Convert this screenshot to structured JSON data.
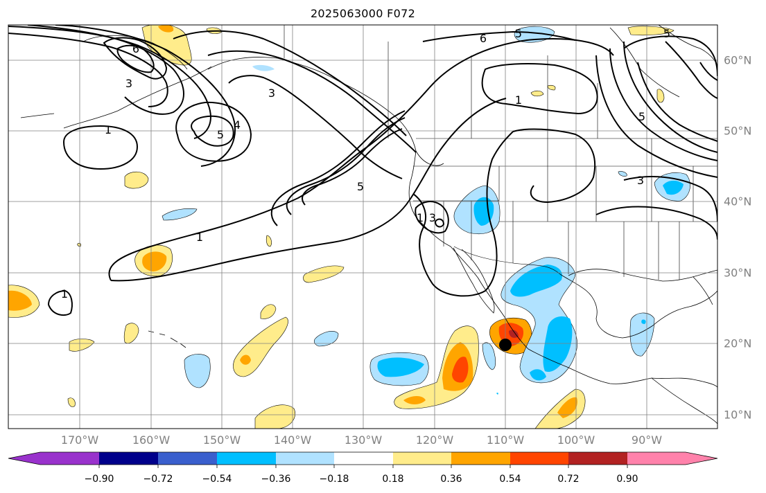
{
  "title": "2025063000 F072",
  "map": {
    "longitude_labels": [
      "170°W",
      "160°W",
      "150°W",
      "140°W",
      "130°W",
      "120°W",
      "110°W",
      "100°W",
      "90°W"
    ],
    "latitude_labels": [
      "10°N",
      "20°N",
      "30°N",
      "40°N",
      "50°N",
      "60°N"
    ],
    "contour_labels": [
      "1",
      "1",
      "1",
      "1",
      "3",
      "3",
      "3",
      "5",
      "5",
      "5",
      "6",
      "6",
      "5",
      "4",
      "5",
      "3",
      "1"
    ],
    "marker": "storm-center-dot"
  },
  "colorbar": {
    "tick_labels": [
      "−0.90",
      "−0.72",
      "−0.54",
      "−0.36",
      "−0.18",
      "0.18",
      "0.36",
      "0.54",
      "0.72",
      "0.90"
    ],
    "colors": [
      "#9932cc",
      "#00008b",
      "#3a5fcd",
      "#00bfff",
      "#b0e2ff",
      "#ffffff",
      "#ffec8b",
      "#ffa500",
      "#ff4500",
      "#b22222",
      "#ff82ab"
    ]
  }
}
